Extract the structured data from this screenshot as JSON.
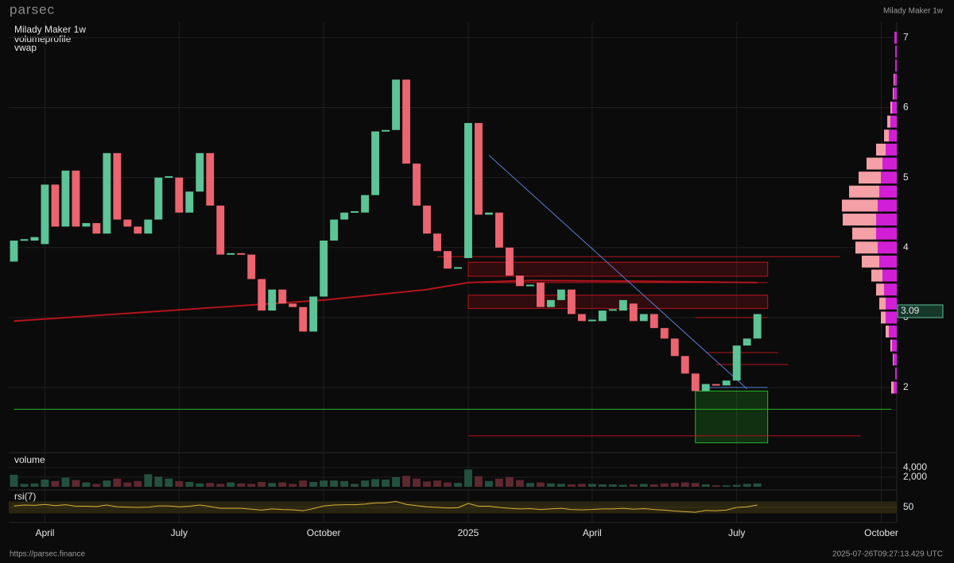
{
  "header": {
    "brand": "parsec",
    "instrument": "Milady Maker 1w"
  },
  "footer": {
    "url": "https://parsec.finance",
    "timestamp": "2025-07-26T09:27:13.429 UTC"
  },
  "chart_data": {
    "type": "candlestick",
    "title": "Milady Maker 1w",
    "legend": [
      {
        "name": "volumeprofile",
        "color": "#d21fd6"
      },
      {
        "name": "vwap",
        "color": "#b3141c"
      }
    ],
    "categories": [
      null,
      null,
      null,
      "April",
      null,
      null,
      null,
      null,
      null,
      null,
      null,
      null,
      null,
      null,
      null,
      null,
      "July",
      null,
      null,
      null,
      null,
      null,
      null,
      null,
      null,
      null,
      null,
      null,
      null,
      null,
      "October",
      null,
      null,
      null,
      null,
      null,
      null,
      null,
      null,
      null,
      null,
      null,
      null,
      null,
      "2025",
      null,
      null,
      null,
      null,
      null,
      null,
      null,
      null,
      null,
      null,
      null,
      "April",
      null,
      null,
      null,
      null,
      null,
      null,
      null,
      null,
      null,
      null,
      null,
      null,
      null,
      "July",
      null,
      null,
      null,
      null,
      null,
      null,
      null,
      null,
      null,
      null,
      null,
      null,
      null,
      "October",
      null
    ],
    "open": [
      3.8,
      4.1,
      4.1,
      4.05,
      4.9,
      4.3,
      5.1,
      4.3,
      4.35,
      4.2,
      5.35,
      4.4,
      4.3,
      4.2,
      4.4,
      5.0,
      5.0,
      4.5,
      4.8,
      5.35,
      4.6,
      3.9,
      3.92,
      3.9,
      3.55,
      3.1,
      3.4,
      3.2,
      3.15,
      2.8,
      3.3,
      4.1,
      4.4,
      4.5,
      4.5,
      4.75,
      5.66,
      5.68,
      6.4,
      5.2,
      4.6,
      4.2,
      3.95,
      3.7,
      3.85,
      5.78,
      4.47,
      4.5,
      4.0,
      3.6,
      3.45,
      3.5,
      3.15,
      3.25,
      3.4,
      3.05,
      2.95,
      2.95,
      3.1,
      3.1,
      3.2,
      2.95,
      3.05,
      2.85,
      2.7,
      2.45,
      2.2,
      1.95,
      2.05,
      2.03,
      2.1,
      2.6,
      2.7,
      null,
      null,
      null,
      null,
      null,
      null,
      null,
      null,
      null,
      null,
      null,
      null,
      null
    ],
    "close": [
      4.1,
      4.12,
      4.15,
      4.9,
      4.3,
      5.1,
      4.3,
      4.35,
      4.2,
      5.35,
      4.4,
      4.3,
      4.2,
      4.4,
      5.0,
      5.02,
      4.5,
      4.8,
      5.35,
      4.6,
      3.9,
      3.92,
      3.9,
      3.55,
      3.1,
      3.4,
      3.2,
      3.15,
      2.8,
      3.3,
      4.1,
      4.4,
      4.5,
      4.52,
      4.75,
      5.66,
      5.68,
      6.4,
      5.2,
      4.6,
      4.2,
      3.95,
      3.7,
      3.72,
      5.78,
      4.47,
      4.5,
      4.0,
      3.6,
      3.45,
      3.47,
      3.15,
      3.25,
      3.4,
      3.05,
      2.95,
      2.97,
      3.1,
      3.12,
      3.25,
      2.95,
      3.05,
      2.85,
      2.7,
      2.45,
      2.2,
      1.95,
      2.05,
      2.03,
      2.1,
      2.6,
      2.7,
      3.05,
      null,
      null,
      null,
      null,
      null,
      null,
      null,
      null,
      null,
      null,
      null,
      null,
      null
    ],
    "up_color": "#5cc497",
    "down_color": "#eb6470",
    "ylim": [
      1.07,
      7.22
    ],
    "yticks": [
      2,
      3,
      4,
      5,
      6,
      7
    ],
    "last_price": 3.09,
    "vwap": {
      "x": [
        0,
        10,
        20,
        30,
        40,
        44,
        50,
        60,
        72
      ],
      "values": [
        2.95,
        3.05,
        3.15,
        3.25,
        3.4,
        3.5,
        3.53,
        3.52,
        3.5
      ],
      "color": "#b3141c"
    },
    "trendline": {
      "x": [
        46,
        71
      ],
      "values": [
        5.32,
        1.98
      ],
      "color": "#5b7fd1"
    },
    "hlines": [
      {
        "value": 3.87,
        "from": 41,
        "to": 80,
        "color": "#b3141c"
      },
      {
        "value": 3.5,
        "from": 44,
        "to": 73,
        "color": "#b3141c"
      },
      {
        "value": 3.0,
        "from": 66,
        "to": 73,
        "color": "#b3141c"
      },
      {
        "value": 2.5,
        "from": 67,
        "to": 74,
        "color": "#b3141c"
      },
      {
        "value": 2.33,
        "from": 68,
        "to": 75,
        "color": "#b3141c"
      },
      {
        "value": 1.31,
        "from": 44,
        "to": 82,
        "color": "#b3141c"
      },
      {
        "value": 2.0,
        "from": 67,
        "to": 73,
        "color": "#5b7fd1"
      },
      {
        "value": 1.69,
        "from": 0,
        "to": 85,
        "color": "#27b327"
      }
    ],
    "boxes": [
      {
        "top": 3.79,
        "bottom": 3.59,
        "from": 44,
        "to": 73,
        "color": "#b3141c"
      },
      {
        "top": 3.32,
        "bottom": 3.13,
        "from": 44,
        "to": 73,
        "color": "#b3141c"
      },
      {
        "top": 1.95,
        "bottom": 1.21,
        "from": 66,
        "to": 73,
        "color": "#27b327"
      }
    ],
    "profile": {
      "levels": [
        2.0,
        2.2,
        2.4,
        2.6,
        2.8,
        3.0,
        3.2,
        3.4,
        3.6,
        3.8,
        4.0,
        4.2,
        4.4,
        4.6,
        4.8,
        5.0,
        5.2,
        5.4,
        5.6,
        5.8,
        6.0,
        6.2,
        6.4,
        6.6,
        6.8,
        7.0
      ],
      "buy": [
        3,
        0,
        1,
        2,
        4,
        6,
        8,
        10,
        14,
        22,
        28,
        30,
        42,
        45,
        38,
        28,
        20,
        12,
        6,
        4,
        2,
        1,
        1,
        0,
        0,
        0
      ],
      "sell": [
        4,
        2,
        4,
        6,
        10,
        14,
        14,
        16,
        18,
        22,
        24,
        26,
        26,
        24,
        22,
        20,
        18,
        14,
        10,
        8,
        6,
        4,
        3,
        2,
        2,
        3
      ],
      "buy_color": "#f4a0a6",
      "sell_color": "#d21fd6"
    },
    "volume_panel": {
      "label": "volume",
      "values": [
        2500,
        600,
        700,
        1500,
        1200,
        1900,
        1400,
        900,
        600,
        1300,
        1700,
        900,
        1200,
        2600,
        2100,
        1700,
        1200,
        1000,
        700,
        800,
        600,
        900,
        700,
        600,
        1000,
        800,
        900,
        600,
        1300,
        1000,
        1300,
        1300,
        1200,
        600,
        1300,
        1600,
        1500,
        2000,
        2300,
        1700,
        1100,
        1300,
        900,
        800,
        3600,
        2200,
        1200,
        1700,
        2000,
        1400,
        800,
        900,
        700,
        600,
        500,
        600,
        600,
        500,
        500,
        400,
        500,
        600,
        500,
        700,
        800,
        900,
        800,
        500,
        300,
        300,
        400,
        600,
        700,
        null,
        null,
        null,
        null,
        null,
        null,
        null,
        null,
        null,
        null,
        null,
        null,
        null
      ],
      "ylim": [
        0,
        6300
      ],
      "yticks": [
        {
          "value": 2000,
          "label": "2,000"
        },
        {
          "value": 4000,
          "label": "4,000"
        }
      ],
      "up_color": "#24513f",
      "down_color": "#5e2830"
    },
    "rsi_panel": {
      "label": "rsi(7)",
      "values": [
        55,
        58,
        57,
        60,
        56,
        59,
        54,
        54,
        53,
        58,
        52,
        51,
        50,
        51,
        55,
        55,
        52,
        54,
        58,
        53,
        47,
        47,
        47,
        44,
        41,
        45,
        43,
        42,
        39,
        46,
        55,
        58,
        59,
        59,
        61,
        65,
        65,
        70,
        60,
        56,
        52,
        50,
        48,
        49,
        63,
        54,
        54,
        50,
        47,
        45,
        46,
        43,
        45,
        47,
        43,
        42,
        43,
        45,
        45,
        47,
        44,
        46,
        43,
        41,
        38,
        36,
        34,
        40,
        39,
        41,
        50,
        52,
        58,
        null,
        null,
        null,
        null,
        null,
        null,
        null,
        null,
        null,
        null,
        null,
        null,
        null
      ],
      "ylim": [
        0,
        100
      ],
      "yticks": [
        50
      ],
      "band": [
        30,
        70
      ],
      "color": "#d9b23a"
    }
  }
}
